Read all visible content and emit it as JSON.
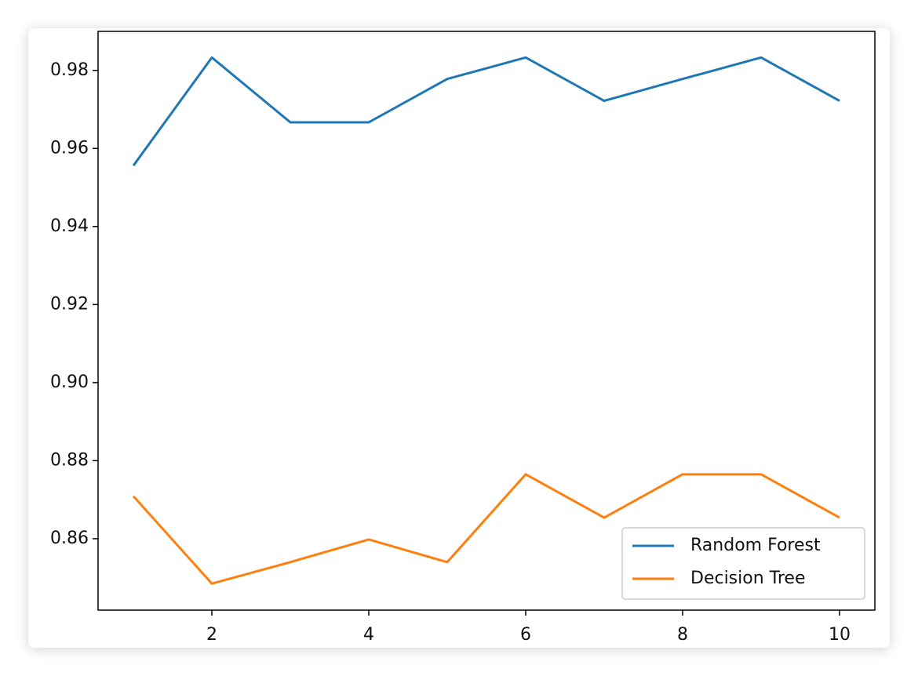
{
  "chart_data": {
    "type": "line",
    "x": [
      1,
      2,
      3,
      4,
      5,
      6,
      7,
      8,
      9,
      10
    ],
    "series": [
      {
        "name": "Random Forest",
        "color": "#1f77b4",
        "values": [
          0.9556,
          0.9833,
          0.9667,
          0.9667,
          0.9778,
          0.9833,
          0.9722,
          0.9778,
          0.9833,
          0.9722
        ]
      },
      {
        "name": "Decision Tree",
        "color": "#ff7f0e",
        "values": [
          0.8709,
          0.8485,
          0.854,
          0.8598,
          0.854,
          0.8765,
          0.8654,
          0.8765,
          0.8765,
          0.8654
        ]
      }
    ],
    "xlim": [
      0.55,
      10.45
    ],
    "xticks": [
      2,
      4,
      6,
      8,
      10
    ],
    "ylim": [
      0.8417,
      0.99
    ],
    "yticks": [
      {
        "value": 0.86,
        "label": "0.86"
      },
      {
        "value": 0.88,
        "label": "0.88"
      },
      {
        "value": 0.9,
        "label": "0.90"
      },
      {
        "value": 0.92,
        "label": "0.92"
      },
      {
        "value": 0.94,
        "label": "0.94"
      },
      {
        "value": 0.96,
        "label": "0.96"
      },
      {
        "value": 0.98,
        "label": "0.98"
      }
    ],
    "grid": false,
    "legend": "lower right"
  }
}
